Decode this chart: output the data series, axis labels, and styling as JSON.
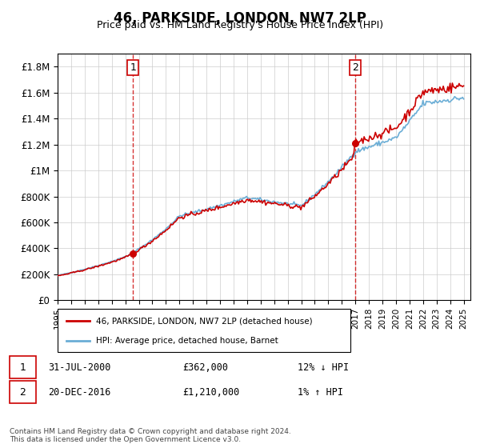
{
  "title": "46, PARKSIDE, LONDON, NW7 2LP",
  "subtitle": "Price paid vs. HM Land Registry's House Price Index (HPI)",
  "legend_entry1": "46, PARKSIDE, LONDON, NW7 2LP (detached house)",
  "legend_entry2": "HPI: Average price, detached house, Barnet",
  "annotation1_date": "31-JUL-2000",
  "annotation1_price": "£362,000",
  "annotation1_hpi": "12% ↓ HPI",
  "annotation2_date": "20-DEC-2016",
  "annotation2_price": "£1,210,000",
  "annotation2_hpi": "1% ↑ HPI",
  "footer": "Contains HM Land Registry data © Crown copyright and database right 2024.\nThis data is licensed under the Open Government Licence v3.0.",
  "hpi_color": "#6baed6",
  "price_color": "#cc0000",
  "ylim": [
    0,
    1900000
  ],
  "yticks": [
    0,
    200000,
    400000,
    600000,
    800000,
    1000000,
    1200000,
    1400000,
    1600000,
    1800000
  ],
  "ytick_labels": [
    "£0",
    "£200K",
    "£400K",
    "£600K",
    "£800K",
    "£1M",
    "£1.2M",
    "£1.4M",
    "£1.6M",
    "£1.8M"
  ],
  "sale1_year": 2000.58,
  "sale1_price": 362000,
  "sale2_year": 2016.97,
  "sale2_price": 1210000,
  "xmin": 1995,
  "xmax": 2025.5
}
